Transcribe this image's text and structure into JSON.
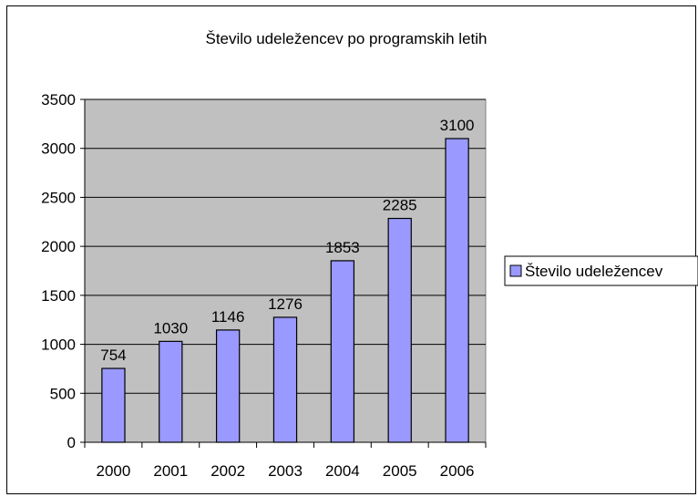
{
  "chart_data": {
    "type": "bar",
    "title": "Število udeležencev po programskih letih",
    "categories": [
      "2000",
      "2001",
      "2002",
      "2003",
      "2004",
      "2005",
      "2006"
    ],
    "series": [
      {
        "name": "Število udeležencev",
        "values": [
          754,
          1030,
          1146,
          1276,
          1853,
          2285,
          3100
        ]
      }
    ],
    "ylim": [
      0,
      3500
    ],
    "yticks": [
      "0",
      "500",
      "1000",
      "1500",
      "2000",
      "2500",
      "3000",
      "3500"
    ],
    "grid": true,
    "legend": "right",
    "colors": {
      "bar": "#9999ff",
      "plot_bg": "#c0c0c0",
      "gridline": "#000000"
    }
  }
}
